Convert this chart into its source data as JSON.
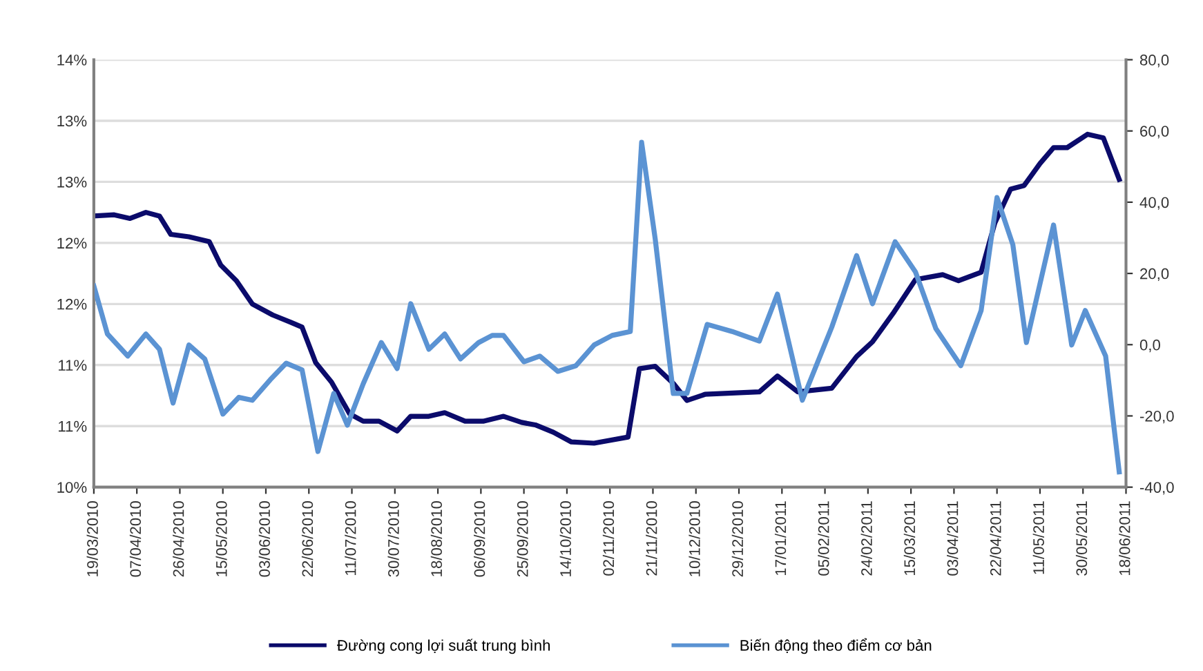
{
  "chart_data": {
    "type": "line",
    "xlim": [
      "2010-03-19",
      "2011-06-18"
    ],
    "xticks": [
      {
        "value": "2010-03-19",
        "label": "19/03/2010"
      },
      {
        "value": "2010-04-07",
        "label": "07/04/2010"
      },
      {
        "value": "2010-04-26",
        "label": "26/04/2010"
      },
      {
        "value": "2010-05-15",
        "label": "15/05/2010"
      },
      {
        "value": "2010-06-03",
        "label": "03/06/2010"
      },
      {
        "value": "2010-06-22",
        "label": "22/06/2010"
      },
      {
        "value": "2010-07-11",
        "label": "11/07/2010"
      },
      {
        "value": "2010-07-30",
        "label": "30/07/2010"
      },
      {
        "value": "2010-08-18",
        "label": "18/08/2010"
      },
      {
        "value": "2010-09-06",
        "label": "06/09/2010"
      },
      {
        "value": "2010-09-25",
        "label": "25/09/2010"
      },
      {
        "value": "2010-10-14",
        "label": "14/10/2010"
      },
      {
        "value": "2010-11-02",
        "label": "02/11/2010"
      },
      {
        "value": "2010-11-21",
        "label": "21/11/2010"
      },
      {
        "value": "2010-12-10",
        "label": "10/12/2010"
      },
      {
        "value": "2010-12-29",
        "label": "29/12/2010"
      },
      {
        "value": "2011-01-17",
        "label": "17/01/2011"
      },
      {
        "value": "2011-02-05",
        "label": "05/02/2011"
      },
      {
        "value": "2011-02-24",
        "label": "24/02/2011"
      },
      {
        "value": "2011-03-15",
        "label": "15/03/2011"
      },
      {
        "value": "2011-04-03",
        "label": "03/04/2011"
      },
      {
        "value": "2011-04-22",
        "label": "22/04/2011"
      },
      {
        "value": "2011-05-11",
        "label": "11/05/2011"
      },
      {
        "value": "2011-05-30",
        "label": "30/05/2011"
      },
      {
        "value": "2011-06-18",
        "label": "18/06/2011"
      }
    ],
    "ylim": [
      10.0,
      13.5
    ],
    "yticks": [
      {
        "value": 10.0,
        "label": "10%"
      },
      {
        "value": 10.5,
        "label": "11%"
      },
      {
        "value": 11.0,
        "label": "11%"
      },
      {
        "value": 11.5,
        "label": "12%"
      },
      {
        "value": 12.0,
        "label": "12%"
      },
      {
        "value": 12.5,
        "label": "13%"
      },
      {
        "value": 13.0,
        "label": "13%"
      },
      {
        "value": 13.5,
        "label": "14%"
      }
    ],
    "y2lim": [
      -40,
      80
    ],
    "y2ticks": [
      {
        "value": -40,
        "label": "-40,0"
      },
      {
        "value": -20,
        "label": "-20,0"
      },
      {
        "value": 0,
        "label": "0,0"
      },
      {
        "value": 20,
        "label": "20,0"
      },
      {
        "value": 40,
        "label": "40,0"
      },
      {
        "value": 60,
        "label": "60,0"
      },
      {
        "value": 80,
        "label": "80,0"
      }
    ],
    "grid": "y",
    "legend": "bottom",
    "marker": "none",
    "line_style": "solid",
    "series": [
      {
        "name": "Đường cong lợi suất trung bình",
        "color": "#0b0b6b",
        "x": [
          "2010-03-19",
          "2010-03-28",
          "2010-04-04",
          "2010-04-11",
          "2010-04-17",
          "2010-04-22",
          "2010-04-30",
          "2010-05-09",
          "2010-05-14",
          "2010-05-21",
          "2010-05-28",
          "2010-06-06",
          "2010-06-14",
          "2010-06-19",
          "2010-06-25",
          "2010-07-02",
          "2010-07-10",
          "2010-07-16",
          "2010-07-23",
          "2010-07-31",
          "2010-08-06",
          "2010-08-14",
          "2010-08-21",
          "2010-08-30",
          "2010-09-07",
          "2010-09-16",
          "2010-09-24",
          "2010-09-30",
          "2010-10-08",
          "2010-10-16",
          "2010-10-26",
          "2010-11-10",
          "2010-11-15",
          "2010-11-22",
          "2010-11-30",
          "2010-12-06",
          "2010-12-14",
          "2010-12-26",
          "2011-01-07",
          "2011-01-15",
          "2011-01-24",
          "2011-02-08",
          "2011-02-19",
          "2011-02-26",
          "2011-03-07",
          "2011-03-17",
          "2011-03-29",
          "2011-04-05",
          "2011-04-15",
          "2011-04-21",
          "2011-04-28",
          "2011-05-04",
          "2011-05-11",
          "2011-05-17",
          "2011-05-23",
          "2011-06-01",
          "2011-06-08",
          "2011-06-15"
        ],
        "values": [
          12.22,
          12.23,
          12.2,
          12.25,
          12.22,
          12.07,
          12.05,
          12.01,
          11.82,
          11.69,
          11.5,
          11.41,
          11.35,
          11.31,
          11.02,
          10.86,
          10.6,
          10.54,
          10.54,
          10.46,
          10.58,
          10.58,
          10.61,
          10.54,
          10.54,
          10.58,
          10.53,
          10.51,
          10.45,
          10.37,
          10.36,
          10.41,
          10.97,
          10.99,
          10.85,
          10.71,
          10.76,
          10.77,
          10.78,
          10.91,
          10.78,
          10.81,
          11.07,
          11.19,
          11.42,
          11.7,
          11.74,
          11.69,
          11.76,
          12.16,
          12.44,
          12.47,
          12.65,
          12.78,
          12.78,
          12.89,
          12.86,
          12.52
        ]
      },
      {
        "name": "Biến động theo điểm cơ bản",
        "color": "#5b93d3",
        "axis": "y2",
        "x": [
          "2010-03-19",
          "2010-03-25",
          "2010-04-03",
          "2010-04-11",
          "2010-04-17",
          "2010-04-23",
          "2010-04-30",
          "2010-05-07",
          "2010-05-15",
          "2010-05-22",
          "2010-05-28",
          "2010-06-05",
          "2010-06-12",
          "2010-06-19",
          "2010-06-26",
          "2010-07-03",
          "2010-07-09",
          "2010-07-16",
          "2010-07-24",
          "2010-07-31",
          "2010-08-06",
          "2010-08-14",
          "2010-08-21",
          "2010-08-28",
          "2010-09-05",
          "2010-09-11",
          "2010-09-16",
          "2010-09-25",
          "2010-10-02",
          "2010-10-10",
          "2010-10-18",
          "2010-10-26",
          "2010-11-03",
          "2010-11-11",
          "2010-11-16",
          "2010-11-22",
          "2010-11-30",
          "2010-12-06",
          "2010-12-15",
          "2010-12-26",
          "2011-01-07",
          "2011-01-15",
          "2011-01-26",
          "2011-02-08",
          "2011-02-19",
          "2011-02-26",
          "2011-03-08",
          "2011-03-17",
          "2011-03-26",
          "2011-04-06",
          "2011-04-15",
          "2011-04-22",
          "2011-04-29",
          "2011-05-05",
          "2011-05-17",
          "2011-05-25",
          "2011-05-31",
          "2011-06-09",
          "2011-06-15"
        ],
        "values": [
          16.5,
          3,
          -3.2,
          3,
          -1.3,
          -16.4,
          -0.1,
          -4,
          -19.5,
          -14.8,
          -15.6,
          -9.8,
          -5.2,
          -7.1,
          -30,
          -13.7,
          -22.6,
          -11,
          0.6,
          -6.7,
          11.5,
          -1.3,
          3,
          -4,
          0.6,
          2.6,
          2.6,
          -4.8,
          -3.2,
          -7.5,
          -5.9,
          -0.1,
          2.6,
          3.7,
          56.8,
          29.7,
          -13.7,
          -13.7,
          5.7,
          3.7,
          1,
          14.2,
          -15.6,
          4.9,
          25,
          11.5,
          28.9,
          20.4,
          4.5,
          -5.9,
          9.6,
          41.3,
          28.1,
          0.6,
          33.6,
          -0.1,
          9.6,
          -3.2,
          -35.7
        ]
      }
    ]
  }
}
